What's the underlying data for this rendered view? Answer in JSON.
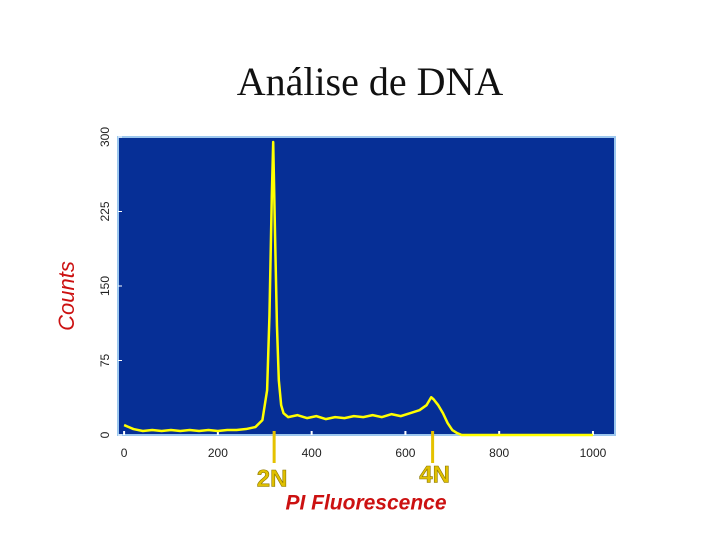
{
  "chart_data": {
    "type": "line",
    "title": "Análise de DNA",
    "x_label": "PI Fluorescence",
    "y_label": "Counts",
    "x": [
      0,
      20,
      40,
      60,
      80,
      100,
      120,
      140,
      160,
      180,
      200,
      220,
      240,
      260,
      280,
      295,
      305,
      310,
      315,
      318,
      322,
      326,
      330,
      335,
      340,
      350,
      370,
      390,
      410,
      430,
      450,
      470,
      490,
      510,
      530,
      550,
      570,
      590,
      610,
      630,
      645,
      655,
      660,
      670,
      680,
      690,
      700,
      710,
      720,
      760,
      800,
      850,
      900,
      950,
      1000
    ],
    "series": [
      {
        "color": "#ffff00",
        "values": [
          10,
          6,
          4,
          5,
          4,
          5,
          4,
          5,
          4,
          5,
          4,
          5,
          5,
          6,
          8,
          15,
          45,
          120,
          240,
          295,
          200,
          110,
          55,
          30,
          22,
          18,
          20,
          17,
          19,
          16,
          18,
          17,
          19,
          18,
          20,
          18,
          21,
          19,
          22,
          25,
          30,
          38,
          36,
          30,
          22,
          12,
          5,
          2,
          0,
          0,
          0,
          0,
          0,
          0,
          0
        ]
      }
    ],
    "xlim": [
      -13,
      1047
    ],
    "ylim": [
      0,
      300
    ],
    "xticks": [
      0,
      200,
      400,
      600,
      800,
      1000
    ],
    "yticks": [
      0,
      75,
      150,
      225,
      300
    ],
    "plot_background": "#062f96",
    "annotations": [
      {
        "label": "2N",
        "x": 320
      },
      {
        "label": "4N",
        "x": 658
      }
    ]
  }
}
